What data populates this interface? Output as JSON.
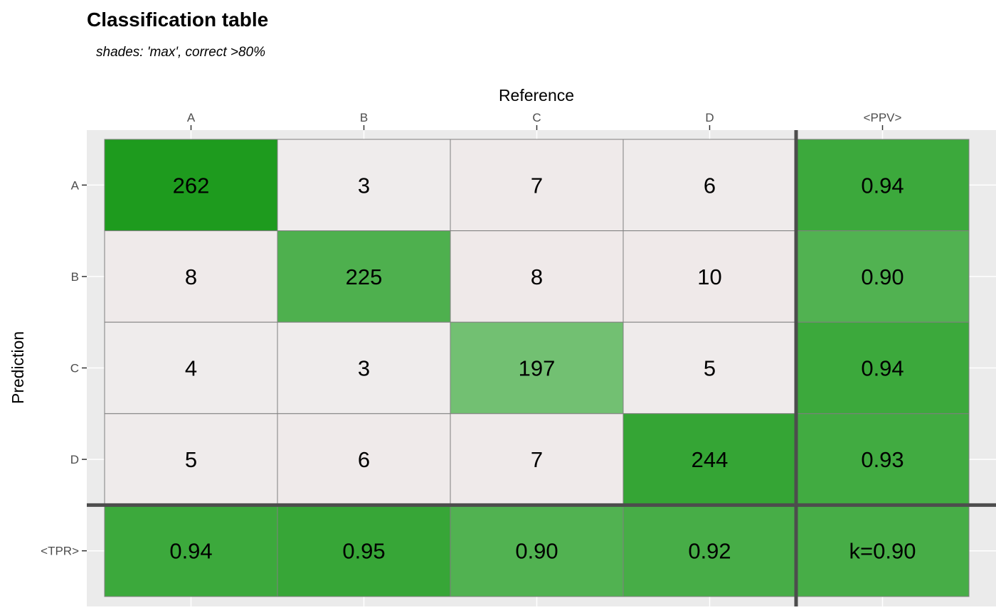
{
  "chart_data": {
    "type": "table",
    "title": "Classification table",
    "subtitle": "shades: 'max', correct >80%",
    "xlabel": "Reference",
    "ylabel": "Prediction",
    "columns": [
      "A",
      "B",
      "C",
      "D",
      "<PPV>"
    ],
    "rows": [
      "A",
      "B",
      "C",
      "D",
      "<TPR>"
    ],
    "matrix": [
      [
        262,
        3,
        7,
        6
      ],
      [
        8,
        225,
        8,
        10
      ],
      [
        4,
        3,
        197,
        5
      ],
      [
        5,
        6,
        7,
        244
      ]
    ],
    "ppv": [
      "0.94",
      "0.90",
      "0.94",
      "0.93"
    ],
    "tpr": [
      "0.94",
      "0.95",
      "0.90",
      "0.92"
    ],
    "kappa": "k=0.90",
    "colors": {
      "panel_background": "#ebebeb",
      "gridline": "#ffffff",
      "cell_border": "#7f7f7f",
      "separator": "#4d4d4d",
      "correct_high": "#1e9b1e",
      "incorrect": "#efe8e8"
    }
  }
}
